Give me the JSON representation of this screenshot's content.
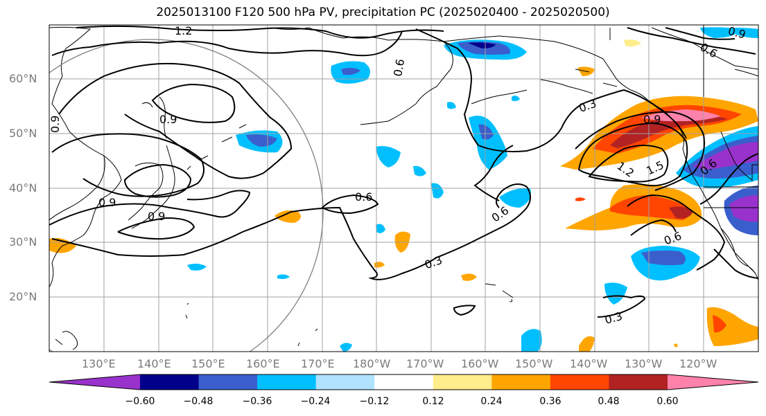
{
  "title": "2025013100 F120 500 hPa PV, precipitation PC (2025020400 - 2025020500)",
  "lat_labels": [
    "60°N",
    "50°N",
    "40°N",
    "30°N",
    "20°N"
  ],
  "lon_labels": [
    "130°E",
    "140°E",
    "150°E",
    "160°E",
    "170°E",
    "180°W",
    "170°W",
    "160°W",
    "150°W",
    "140°W",
    "130°W",
    "120°W"
  ],
  "colorbar": {
    "ticks": [
      "−0.60",
      "−0.48",
      "−0.36",
      "−0.24",
      "−0.12",
      "0.12",
      "0.24",
      "0.36",
      "0.48",
      "0.60"
    ],
    "colors": [
      "#9932cc",
      "#00008b",
      "#3a5fcd",
      "#00bfff",
      "#b0e2ff",
      "#ffffff",
      "#ffec8b",
      "#ffa500",
      "#ff4500",
      "#b22222",
      "#ff82ab"
    ]
  },
  "contour_labels": [
    "1.2",
    "0.6",
    "0.9",
    "0.9",
    "0.9",
    "0.9",
    "0.6",
    "0.3",
    "0.6",
    "0.3",
    "0.3",
    "1.2",
    "1.5",
    "0.6",
    "0.6",
    "0.6",
    "0.9",
    "0.9"
  ]
}
